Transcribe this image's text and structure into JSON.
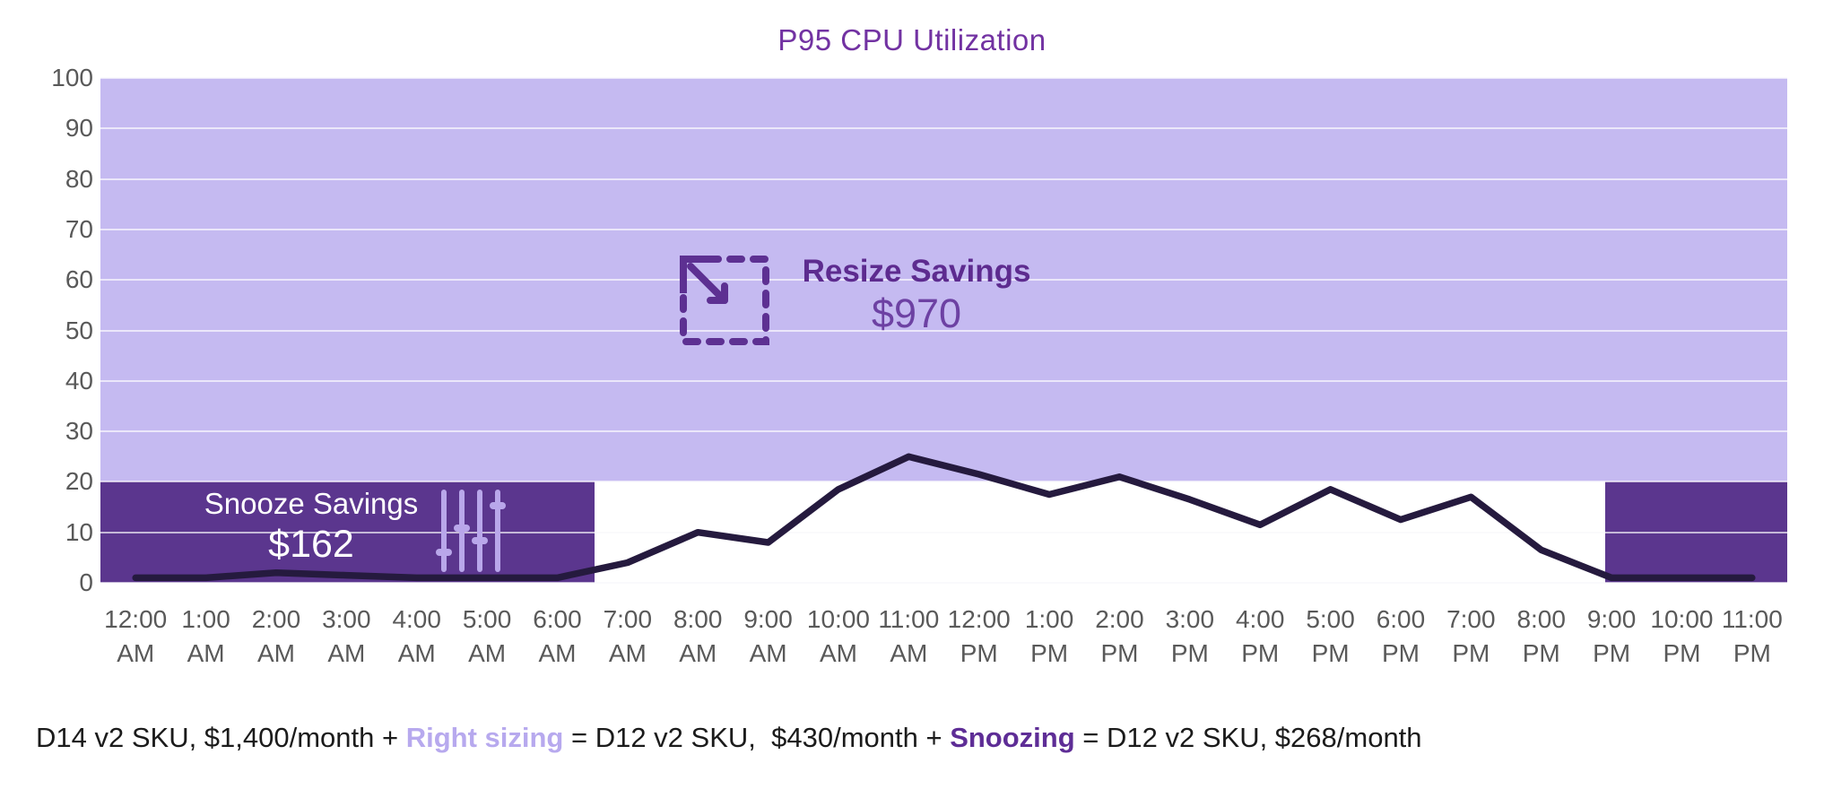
{
  "title": {
    "text": "P95 CPU Utilization"
  },
  "colors": {
    "title": "#7232a2",
    "light_band": "#c5baf1",
    "dark_band": "#5b368e",
    "line": "#251a3e",
    "axis_label": "#595959",
    "annotation_light": "#b9a7ea",
    "resize_label_text": "#5d2b8f",
    "resize_amount_text": "#6d41a3",
    "snooze_text": "#ffffff",
    "footer_text": "#1b1b1b",
    "right_sizing_text": "#b7a9ee",
    "snoozing_text": "#5e2d96",
    "resize_icon": "#5d3092"
  },
  "chart_data": {
    "type": "line",
    "title": "P95 CPU Utilization",
    "x_labels": [
      "12:00 AM",
      "1:00 AM",
      "2:00 AM",
      "3:00 AM",
      "4:00 AM",
      "5:00 AM",
      "6:00 AM",
      "7:00 AM",
      "8:00 AM",
      "9:00 AM",
      "10:00 AM",
      "11:00 AM",
      "12:00 PM",
      "1:00 PM",
      "2:00 PM",
      "3:00 PM",
      "4:00 PM",
      "5:00 PM",
      "6:00 PM",
      "7:00 PM",
      "8:00 PM",
      "9:00 PM",
      "10:00 PM",
      "11:00 PM"
    ],
    "series": [
      {
        "name": "P95 CPU Utilization",
        "values": [
          1,
          1,
          2,
          1.5,
          1,
          1,
          1,
          4,
          10,
          8,
          18.5,
          25,
          21.5,
          17.5,
          21,
          16.5,
          11.5,
          18.5,
          12.5,
          17,
          6.5,
          1,
          1,
          1
        ]
      }
    ],
    "ylim": [
      0,
      100
    ],
    "yticks": [
      0,
      10,
      20,
      30,
      40,
      50,
      60,
      70,
      80,
      90,
      100
    ],
    "grid": true,
    "legend": "none",
    "regions": [
      {
        "name": "resize-band",
        "x_from": 0,
        "x_to": 1,
        "y_from": 20,
        "y_to": 100,
        "color_key": "light_band",
        "label": "Resize Savings",
        "amount": "$970"
      },
      {
        "name": "snooze-band-early",
        "x_from": 0,
        "x_to": 0.293,
        "y_from": 0,
        "y_to": 20,
        "color_key": "dark_band",
        "label": "Snooze Savings",
        "amount": "$162"
      },
      {
        "name": "snooze-band-late",
        "x_from": 0.892,
        "x_to": 1,
        "y_from": 0,
        "y_to": 20,
        "color_key": "dark_band"
      }
    ]
  },
  "annotations": {
    "snooze": {
      "label": "Snooze Savings",
      "amount": "$162",
      "icon": "sliders-icon"
    },
    "resize": {
      "label": "Resize Savings",
      "amount": "$970",
      "icon": "resize-diagonal-icon"
    }
  },
  "footer": {
    "part1": "D14 v2 SKU, $1,400/month + ",
    "right_sizing": "Right sizing",
    "part2": " = D12 v2 SKU,  $430/month + ",
    "snoozing": "Snoozing",
    "part3": " = D12 v2 SKU, $268/month"
  }
}
